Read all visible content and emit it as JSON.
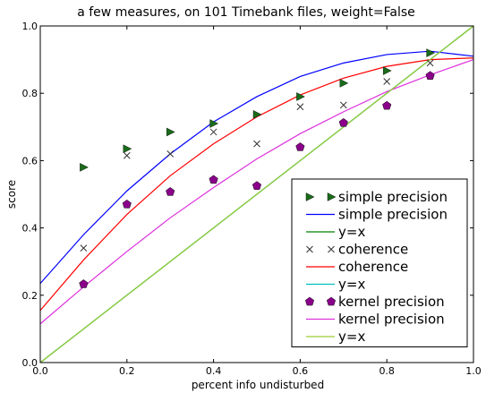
{
  "chart_data": {
    "type": "line",
    "title": "a few measures, on 101 Timebank files, weight=False",
    "xlabel": "percent info undisturbed",
    "ylabel": "score",
    "xlim": [
      0.0,
      1.0
    ],
    "ylim": [
      0.0,
      1.0
    ],
    "xticks": [
      "0.0",
      "0.2",
      "0.4",
      "0.6",
      "0.8",
      "1.0"
    ],
    "yticks": [
      "0.0",
      "0.2",
      "0.4",
      "0.6",
      "0.8",
      "1.0"
    ],
    "grid": false,
    "legend_position": "lower-right",
    "series": [
      {
        "name": "simple precision",
        "kind": "marker",
        "marker": "triangle-right",
        "color": "#1a6b1a",
        "x": [
          0.1,
          0.2,
          0.3,
          0.4,
          0.5,
          0.6,
          0.7,
          0.8,
          0.9
        ],
        "y": [
          0.58,
          0.635,
          0.685,
          0.71,
          0.737,
          0.79,
          0.83,
          0.867,
          0.92
        ]
      },
      {
        "name": "simple precision",
        "kind": "line",
        "color": "#0000ff",
        "x": [
          0.0,
          0.1,
          0.2,
          0.3,
          0.4,
          0.5,
          0.6,
          0.7,
          0.8,
          0.9,
          1.0
        ],
        "y": [
          0.235,
          0.38,
          0.51,
          0.62,
          0.715,
          0.79,
          0.85,
          0.89,
          0.915,
          0.925,
          0.91
        ]
      },
      {
        "name": "y=x",
        "kind": "line",
        "color": "#008000",
        "x": [
          0.0,
          1.0
        ],
        "y": [
          0.0,
          1.0
        ]
      },
      {
        "name": "coherence",
        "kind": "marker",
        "marker": "x",
        "color": "#333333",
        "x": [
          0.1,
          0.2,
          0.3,
          0.4,
          0.5,
          0.6,
          0.7,
          0.8,
          0.9
        ],
        "y": [
          0.34,
          0.615,
          0.62,
          0.685,
          0.65,
          0.76,
          0.765,
          0.835,
          0.89
        ]
      },
      {
        "name": "coherence",
        "kind": "line",
        "color": "#ff0000",
        "x": [
          0.0,
          0.1,
          0.2,
          0.3,
          0.4,
          0.5,
          0.6,
          0.7,
          0.8,
          0.9,
          1.0
        ],
        "y": [
          0.155,
          0.305,
          0.44,
          0.555,
          0.65,
          0.73,
          0.795,
          0.845,
          0.88,
          0.9,
          0.905
        ]
      },
      {
        "name": "y=x",
        "kind": "line",
        "color": "#00bfbf",
        "x": [
          0.0,
          1.0
        ],
        "y": [
          0.0,
          1.0
        ]
      },
      {
        "name": "kernel precision",
        "kind": "marker",
        "marker": "pentagon",
        "color": "#8b008b",
        "x": [
          0.1,
          0.2,
          0.3,
          0.4,
          0.5,
          0.6,
          0.7,
          0.8,
          0.9
        ],
        "y": [
          0.233,
          0.47,
          0.507,
          0.543,
          0.525,
          0.64,
          0.712,
          0.763,
          0.852
        ]
      },
      {
        "name": "kernel precision",
        "kind": "line",
        "color": "#dd30dd",
        "x": [
          0.0,
          0.1,
          0.2,
          0.3,
          0.4,
          0.5,
          0.6,
          0.7,
          0.8,
          0.9,
          1.0
        ],
        "y": [
          0.115,
          0.225,
          0.33,
          0.43,
          0.52,
          0.605,
          0.68,
          0.745,
          0.805,
          0.855,
          0.9
        ]
      },
      {
        "name": "y=x",
        "kind": "line",
        "color": "#9acd32",
        "x": [
          0.0,
          1.0
        ],
        "y": [
          0.0,
          1.0
        ]
      }
    ]
  }
}
